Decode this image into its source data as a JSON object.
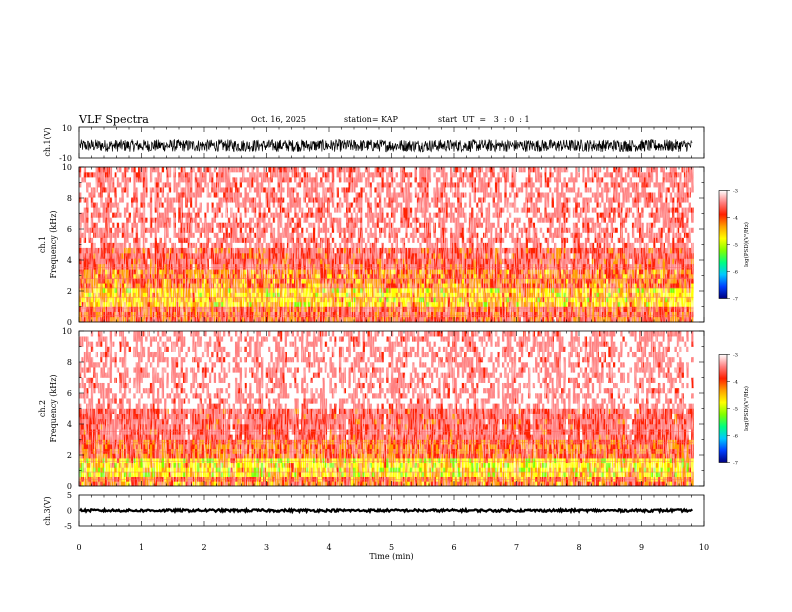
{
  "header": {
    "title": "VLF Spectra",
    "date": "Oct. 16, 2025",
    "station": "station= KAP",
    "start": "start  UT  =   3  : 0  : 1"
  },
  "colorbar": {
    "label": "log(PSD)(V²/Hz)",
    "ticks": [
      "-3",
      "-4",
      "-5",
      "-6",
      "-7"
    ],
    "colors": [
      "#000080",
      "#0040ff",
      "#00c8ff",
      "#00ff80",
      "#80ff00",
      "#ffff00",
      "#ffa000",
      "#ff2000",
      "#ff8080",
      "#ffffff"
    ]
  },
  "chart_data": [
    {
      "type": "line",
      "name": "ch1-waveform",
      "ylabel": "ch.1(V)",
      "ylim": [
        -10,
        10
      ],
      "ytick_labels": [
        "10",
        "-10"
      ],
      "xlim": [
        0,
        9.83
      ],
      "description_values": {
        "mean": -2,
        "amplitude": 4
      }
    },
    {
      "type": "heatmap",
      "name": "ch1-spectrogram",
      "ylabel_top": "ch.1",
      "ylabel": "Frequency  (kHz)",
      "ylim": [
        0,
        10
      ],
      "ytick_labels": [
        "10",
        "8",
        "6",
        "4",
        "2",
        "0"
      ],
      "xlim": [
        0,
        9.83
      ],
      "zlim": [
        -7,
        -3
      ],
      "bands": [
        {
          "from_khz": 0,
          "to_khz": 1,
          "log_psd": -4.0
        },
        {
          "from_khz": 1,
          "to_khz": 2.2,
          "log_psd": -4.6
        },
        {
          "from_khz": 2.2,
          "to_khz": 3.4,
          "log_psd": -4.2
        },
        {
          "from_khz": 3.4,
          "to_khz": 4.8,
          "log_psd": -3.8
        },
        {
          "from_khz": 4.8,
          "to_khz": 10,
          "log_psd": -3.4
        }
      ]
    },
    {
      "type": "heatmap",
      "name": "ch2-spectrogram",
      "ylabel_top": "ch.2",
      "ylabel": "Frequency  (kHz)",
      "ylim": [
        0,
        10
      ],
      "ytick_labels": [
        "10",
        "8",
        "6",
        "4",
        "2",
        "0"
      ],
      "xlim": [
        0,
        9.83
      ],
      "zlim": [
        -7,
        -3
      ],
      "bands": [
        {
          "from_khz": 0,
          "to_khz": 0.6,
          "log_psd": -4.2
        },
        {
          "from_khz": 0.6,
          "to_khz": 1.8,
          "log_psd": -4.7
        },
        {
          "from_khz": 1.8,
          "to_khz": 3.0,
          "log_psd": -4.1
        },
        {
          "from_khz": 3.0,
          "to_khz": 5.0,
          "log_psd": -3.7
        },
        {
          "from_khz": 5.0,
          "to_khz": 10,
          "log_psd": -3.3
        }
      ]
    },
    {
      "type": "line",
      "name": "ch3-waveform",
      "ylabel": "ch.3(V)",
      "ylim": [
        -5,
        5
      ],
      "ytick_labels": [
        "5",
        "0",
        "-5"
      ],
      "xlim": [
        0,
        9.83
      ],
      "description_values": {
        "mean": 0,
        "amplitude": 0.4
      }
    }
  ],
  "x_axis": {
    "label": "Time  (min)",
    "ticks": [
      "0",
      "1",
      "2",
      "3",
      "4",
      "5",
      "6",
      "7",
      "8",
      "9",
      "10"
    ],
    "range": [
      0,
      10
    ]
  }
}
